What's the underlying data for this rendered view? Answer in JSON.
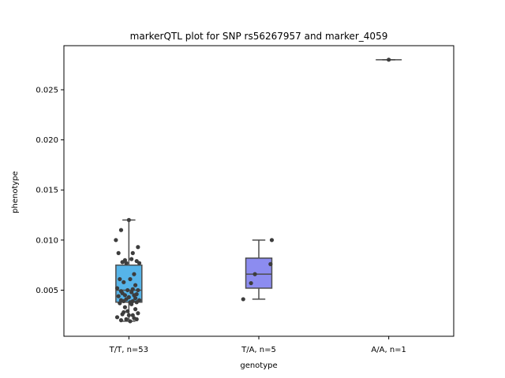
{
  "chart_data": {
    "type": "box",
    "title": "markerQTL plot for SNP rs56267957 and marker_4059",
    "xlabel": "genotype",
    "ylabel": "phenotype",
    "ylim": [
      0.0004,
      0.0294
    ],
    "yticks": [
      "0.005",
      "0.010",
      "0.015",
      "0.020",
      "0.025"
    ],
    "ytick_values": [
      0.005,
      0.01,
      0.015,
      0.02,
      0.025
    ],
    "grid": false,
    "legend": "none",
    "categories": [
      "T/T, n=53",
      "T/A, n=5",
      "A/A, n=1"
    ],
    "boxes": [
      {
        "category": "T/T, n=53",
        "color": "#56b4e9",
        "whislo": 0.0019,
        "q1": 0.0038,
        "med": 0.005,
        "q3": 0.0075,
        "whishi": 0.012
      },
      {
        "category": "T/A, n=5",
        "color": "#8c8cf0",
        "whislo": 0.0041,
        "q1": 0.0052,
        "med": 0.0066,
        "q3": 0.0082,
        "whishi": 0.01
      },
      {
        "category": "A/A, n=1",
        "color": "#8c8cf0",
        "whislo": 0.028,
        "q1": 0.028,
        "med": 0.028,
        "q3": 0.028,
        "whishi": 0.028
      }
    ],
    "points": [
      {
        "category": "T/T, n=53",
        "jitter": [
          -0.1,
          0.0,
          -0.06,
          0.07,
          0.03,
          -0.08,
          0.02,
          -0.03,
          0.06,
          -0.05,
          0.08,
          -0.02,
          0.04,
          -0.07,
          0.01,
          -0.04,
          0.05,
          -0.09,
          0.03,
          -0.01,
          0.07,
          -0.06,
          0.02,
          -0.05,
          0.06,
          -0.03,
          0.04,
          -0.08,
          0.0,
          0.05,
          -0.02,
          0.08,
          -0.06,
          0.03,
          -0.04,
          0.01,
          0.06,
          -0.07,
          0.02,
          -0.03,
          0.05,
          -0.01,
          0.07,
          -0.05,
          0.03,
          0.0,
          -0.09,
          0.04,
          -0.02,
          0.06,
          -0.06,
          0.01,
          -0.04
        ],
        "values": [
          0.01,
          0.012,
          0.011,
          0.0093,
          0.0087,
          0.0087,
          0.0081,
          0.008,
          0.0079,
          0.0078,
          0.0077,
          0.0077,
          0.0066,
          0.0061,
          0.0061,
          0.0058,
          0.0055,
          0.0052,
          0.0051,
          0.005,
          0.005,
          0.0049,
          0.0048,
          0.0047,
          0.0046,
          0.0045,
          0.0045,
          0.0044,
          0.0043,
          0.0042,
          0.0041,
          0.004,
          0.004,
          0.0039,
          0.0039,
          0.0038,
          0.0038,
          0.0037,
          0.0036,
          0.0033,
          0.0031,
          0.0029,
          0.0027,
          0.0026,
          0.0025,
          0.0025,
          0.0023,
          0.0022,
          0.0021,
          0.0021,
          0.002,
          0.0019,
          0.0028
        ]
      },
      {
        "category": "T/A, n=5",
        "jitter": [
          0.1,
          0.09,
          -0.06,
          -0.12,
          -0.03
        ],
        "values": [
          0.01,
          0.0076,
          0.0057,
          0.0041,
          0.0066
        ]
      },
      {
        "category": "A/A, n=1",
        "jitter": [
          0.0
        ],
        "values": [
          0.028
        ]
      }
    ],
    "point_color": "#3d3d3d",
    "line_color": "#4d4d4d"
  }
}
